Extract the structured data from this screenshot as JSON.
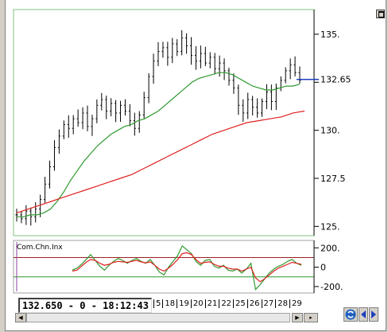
{
  "status": {
    "readout": "132.650 - 0 - 18:12:43"
  },
  "chart_data": [
    {
      "type": "ohlc",
      "x_tick_labels": [
        "5",
        "18",
        "19",
        "20",
        "21",
        "22",
        "25",
        "26",
        "27",
        "28",
        "29"
      ],
      "yticks": [
        125,
        127.5,
        130,
        132.5,
        135
      ],
      "ytick_labels": [
        "125.",
        "127.5",
        "130.",
        "",
        "135."
      ],
      "last_price_label": "132.65",
      "last_price": 132.65,
      "ylim": [
        124.6,
        136.2
      ],
      "grid": false,
      "colors": {
        "price": "#000000",
        "ma_fast": "#2e9a2e",
        "ma_slow": "#e02020",
        "last_marker": "#2040c0",
        "frame": "#80c080"
      },
      "price_series": [
        125.6,
        125.4,
        125.8,
        125.5,
        125.9,
        126.4,
        127.2,
        128.1,
        129.1,
        129.7,
        130.3,
        130.1,
        130.6,
        130.4,
        130.9,
        130.2,
        130.6,
        131.3,
        131.6,
        131.0,
        131.4,
        130.9,
        131.3,
        131.0,
        130.5,
        130.1,
        130.8,
        131.7,
        132.8,
        133.6,
        134.1,
        134.3,
        133.8,
        134.5,
        134.1,
        134.8,
        134.4,
        133.9,
        133.6,
        134.0,
        133.5,
        133.8,
        133.2,
        133.5,
        133.1,
        132.6,
        132.2,
        131.3,
        130.9,
        131.6,
        131.2,
        130.9,
        131.5,
        132.0,
        131.5,
        132.2,
        132.6,
        133.1,
        133.4,
        133.0,
        132.6
      ],
      "ma_fast": [
        125.5,
        125.5,
        125.6,
        125.6,
        125.7,
        125.9,
        126.3,
        126.8,
        127.4,
        127.9,
        128.4,
        128.8,
        129.2,
        129.5,
        129.8,
        130.0,
        130.2,
        130.3,
        130.5,
        130.6,
        130.8,
        131.0,
        131.3,
        131.6,
        131.9,
        132.2,
        132.5,
        132.7,
        132.8,
        132.9,
        133.0,
        133.0,
        132.9,
        132.7,
        132.5,
        132.3,
        132.2,
        132.1,
        132.1,
        132.2,
        132.3,
        132.3,
        132.4
      ],
      "ma_slow": [
        125.7,
        125.9,
        126.1,
        126.3,
        126.5,
        126.7,
        126.9,
        127.1,
        127.3,
        127.5,
        127.7,
        128.0,
        128.3,
        128.6,
        128.9,
        129.2,
        129.5,
        129.8,
        130.0,
        130.2,
        130.4,
        130.5,
        130.6,
        130.7,
        130.9,
        131.0
      ]
    },
    {
      "type": "line",
      "indicator_label": "Com.Chn.Inx",
      "yticks": [
        200,
        0,
        -200
      ],
      "ytick_labels": [
        "200.",
        "0",
        "-200."
      ],
      "ylim": [
        -250,
        260
      ],
      "upper_level": 100,
      "lower_level": -100,
      "colors": {
        "cci": "#2e9a2e",
        "signal": "#e02020",
        "upper_level": "#a02020",
        "lower_level": "#2e9a2e"
      },
      "cci": [
        -30,
        -10,
        30,
        80,
        130,
        70,
        10,
        -30,
        20,
        60,
        90,
        70,
        40,
        70,
        90,
        60,
        40,
        80,
        20,
        -50,
        -80,
        0,
        60,
        120,
        220,
        180,
        140,
        60,
        20,
        70,
        80,
        10,
        -10,
        20,
        -30,
        -40,
        -20,
        -60,
        -20,
        40,
        -230,
        -180,
        -120,
        -60,
        -20,
        10,
        30,
        60,
        80,
        40,
        20
      ],
      "signal": [
        -40,
        -30,
        10,
        50,
        80,
        70,
        40,
        20,
        30,
        50,
        60,
        55,
        50,
        60,
        70,
        55,
        45,
        55,
        20,
        -20,
        -40,
        -10,
        30,
        80,
        140,
        150,
        130,
        80,
        40,
        50,
        55,
        30,
        10,
        10,
        -10,
        -20,
        -20,
        -40,
        -20,
        0,
        -110,
        -150,
        -120,
        -80,
        -40,
        -10,
        10,
        30,
        50,
        40,
        30
      ]
    }
  ]
}
